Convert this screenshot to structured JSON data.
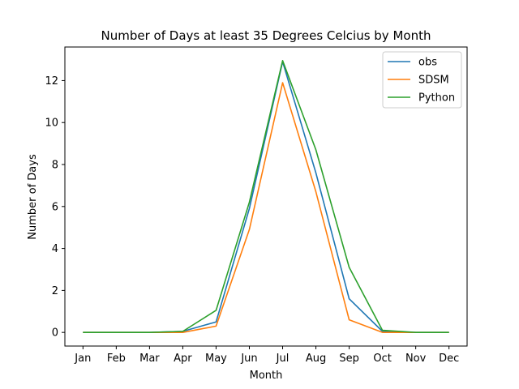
{
  "chart_data": {
    "type": "line",
    "title": "Number of Days at least 35 Degrees Celcius by Month",
    "xlabel": "Month",
    "ylabel": "Number of Days",
    "categories": [
      "Jan",
      "Feb",
      "Mar",
      "Apr",
      "May",
      "Jun",
      "Jul",
      "Aug",
      "Sep",
      "Oct",
      "Nov",
      "Dec"
    ],
    "ylim": [
      -0.65,
      13.6
    ],
    "yticks": [
      0,
      2,
      4,
      6,
      8,
      10,
      12
    ],
    "grid": false,
    "legend_position": "top-right",
    "series": [
      {
        "name": "obs",
        "color": "#1f77b4",
        "values": [
          0,
          0,
          0,
          0.05,
          0.5,
          5.9,
          12.9,
          7.6,
          1.6,
          0.05,
          0,
          0
        ]
      },
      {
        "name": "SDSM",
        "color": "#ff7f0e",
        "values": [
          0,
          0,
          0,
          0,
          0.3,
          4.9,
          11.9,
          6.7,
          0.6,
          0,
          0,
          0
        ]
      },
      {
        "name": "Python",
        "color": "#2ca02c",
        "values": [
          0,
          0,
          0,
          0.05,
          1.05,
          6.2,
          12.95,
          8.7,
          3.1,
          0.1,
          0,
          0
        ]
      }
    ]
  }
}
